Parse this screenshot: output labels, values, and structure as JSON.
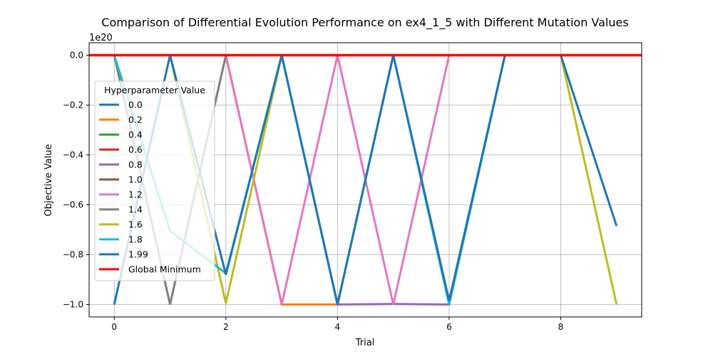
{
  "chart_data": {
    "type": "line",
    "title": "Comparison of Differential Evolution Performance on ex4_1_5 with Different Mutation Values",
    "xlabel": "Trial",
    "ylabel": "Objective Value",
    "y_offset_label": "1e20",
    "y_scale_factor": 1e+20,
    "xlim": [
      -0.45,
      9.45
    ],
    "ylim": [
      -1.05,
      0.05
    ],
    "x_ticks": [
      0,
      2,
      4,
      6,
      8
    ],
    "y_ticks": [
      0.0,
      -0.2,
      -0.4,
      -0.6,
      -0.8,
      -1.0
    ],
    "x_tick_labels": [
      "0",
      "2",
      "4",
      "6",
      "8"
    ],
    "y_tick_labels": [
      "0.0",
      "−0.2",
      "−0.4",
      "−0.6",
      "−0.8",
      "−1.0"
    ],
    "grid": true,
    "legend": {
      "title": "Hyperparameter Value",
      "placement": "center-left"
    },
    "x": [
      0,
      1,
      2,
      3,
      4,
      5,
      6,
      7,
      8,
      9
    ],
    "series": [
      {
        "name": "0.0",
        "color": "#1f77b4",
        "values": [
          0,
          0,
          0,
          0,
          0,
          0,
          0,
          0,
          0,
          0
        ]
      },
      {
        "name": "0.2",
        "color": "#ff7f0e",
        "values": [
          0,
          0,
          0,
          -1.0,
          -1.0,
          0,
          0,
          0,
          0,
          0
        ]
      },
      {
        "name": "0.4",
        "color": "#2ca02c",
        "values": [
          0,
          0,
          0,
          0,
          0,
          0,
          0,
          0,
          0,
          0
        ]
      },
      {
        "name": "0.6",
        "color": "#d62728",
        "values": [
          0,
          0,
          0,
          0,
          0,
          0,
          0,
          0,
          0,
          0
        ]
      },
      {
        "name": "0.8",
        "color": "#9467bd",
        "values": [
          0,
          0,
          0,
          0,
          -1.0,
          -0.998,
          -1.0,
          0,
          0,
          0
        ]
      },
      {
        "name": "1.0",
        "color": "#8c564b",
        "values": [
          0,
          0,
          0,
          0,
          0,
          0,
          0,
          0,
          0,
          0
        ]
      },
      {
        "name": "1.2",
        "color": "#e377c2",
        "values": [
          0,
          0,
          0,
          -1.0,
          0,
          -1.0,
          0,
          0,
          0,
          0
        ]
      },
      {
        "name": "1.4",
        "color": "#7f7f7f",
        "values": [
          0,
          -1.0,
          0,
          0,
          0,
          0,
          0,
          0,
          0,
          0
        ]
      },
      {
        "name": "1.6",
        "color": "#bcbd22",
        "values": [
          0,
          0,
          -0.995,
          0,
          0,
          0,
          0,
          0,
          0,
          -1.0
        ]
      },
      {
        "name": "1.8",
        "color": "#17becf",
        "values": [
          0,
          -0.705,
          -0.875,
          0,
          -1.0,
          0,
          -1.0,
          0,
          0,
          0
        ]
      },
      {
        "name": "1.99",
        "color": "#1f77b4",
        "values": [
          -1.0,
          0,
          -0.88,
          0,
          -1.0,
          0,
          -0.985,
          0,
          0,
          -0.685
        ]
      }
    ],
    "global_minimum": {
      "name": "Global Minimum",
      "color": "#ff0000",
      "value": 0
    }
  }
}
